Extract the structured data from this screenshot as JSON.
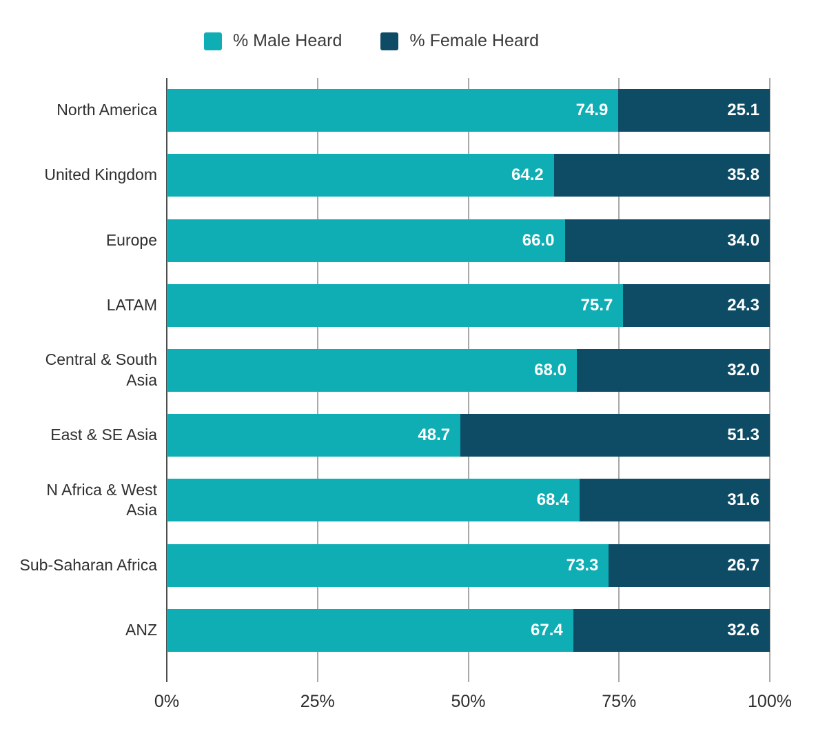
{
  "chart_data": {
    "type": "bar",
    "orientation": "horizontal",
    "stacked": true,
    "title": "",
    "xlabel": "",
    "ylabel": "",
    "xlim": [
      0,
      100
    ],
    "grid": true,
    "legend_position": "top",
    "categories": [
      "North America",
      "United Kingdom",
      "Europe",
      "LATAM",
      "Central & South Asia",
      "East & SE Asia",
      "N Africa & West Asia",
      "Sub-Saharan Africa",
      "ANZ"
    ],
    "series": [
      {
        "name": "% Male Heard",
        "color": "#0fadb4",
        "values": [
          74.9,
          64.2,
          66.0,
          75.7,
          68.0,
          48.7,
          68.4,
          73.3,
          67.4
        ],
        "labels": [
          "74.9",
          "64.2",
          "66.0",
          "75.7",
          "68.0",
          "48.7",
          "68.4",
          "73.3",
          "67.4"
        ]
      },
      {
        "name": "% Female Heard",
        "color": "#0e4c66",
        "values": [
          25.1,
          35.8,
          34.0,
          24.3,
          32.0,
          51.3,
          31.6,
          26.7,
          32.6
        ],
        "labels": [
          "25.1",
          "35.8",
          "34.0",
          "24.3",
          "32.0",
          "51.3",
          "31.6",
          "26.7",
          "32.6"
        ]
      }
    ],
    "x_ticks": [
      {
        "label": "0%",
        "value": 0
      },
      {
        "label": "25%",
        "value": 25
      },
      {
        "label": "50%",
        "value": 50
      },
      {
        "label": "75%",
        "value": 75
      },
      {
        "label": "100%",
        "value": 100
      }
    ],
    "gridline_color": "#a9a9a9",
    "axis_line_color": "#4d4d4d",
    "value_label_color": "#ffffff"
  }
}
